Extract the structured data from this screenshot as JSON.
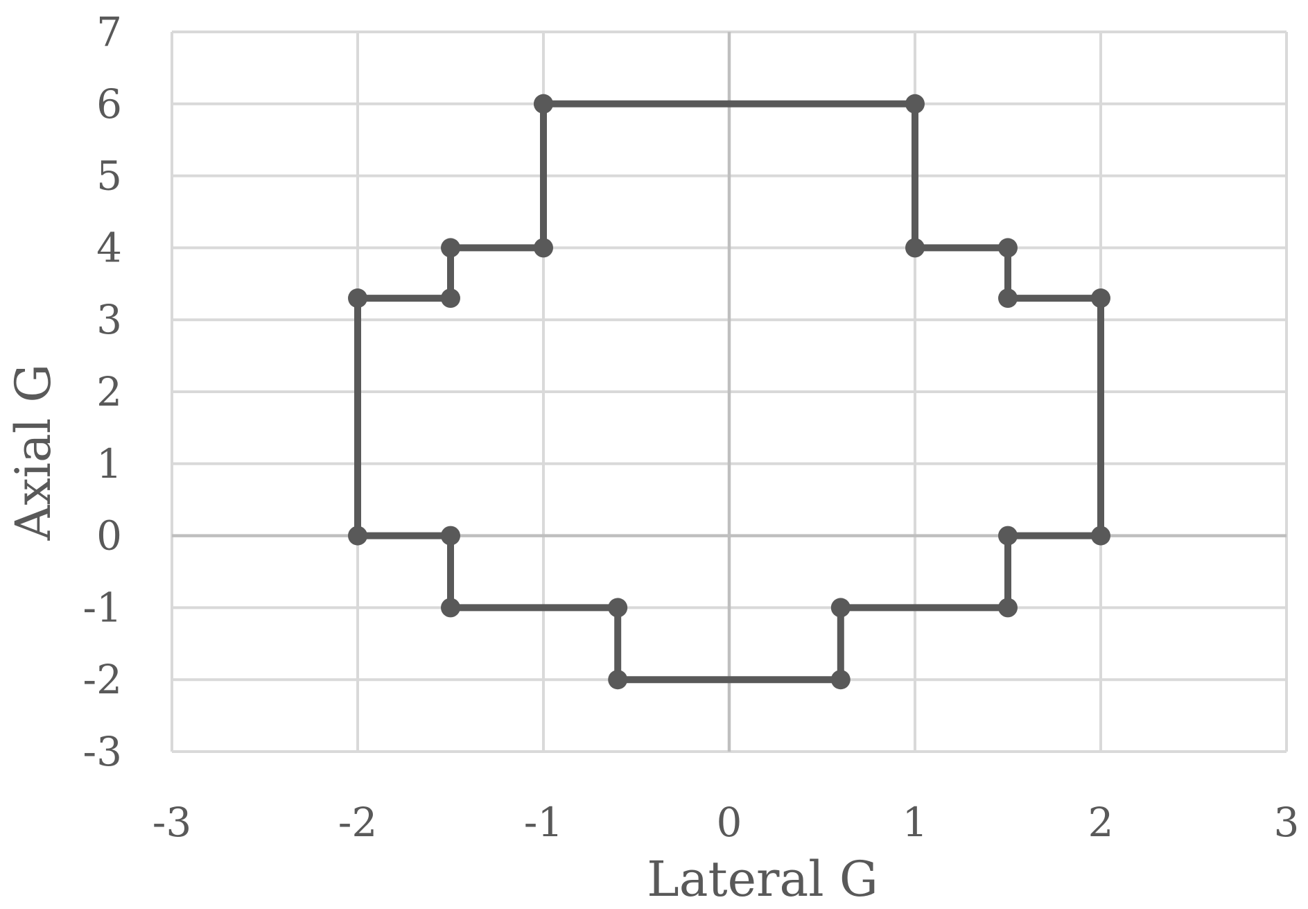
{
  "chart_data": {
    "type": "scatter",
    "xlabel": "Lateral G",
    "ylabel": "Axial G",
    "xlim": [
      -3,
      3
    ],
    "ylim": [
      -3,
      7
    ],
    "x_ticks": [
      -3,
      -2,
      -1,
      0,
      1,
      2,
      3
    ],
    "y_ticks": [
      -3,
      -2,
      -1,
      0,
      1,
      2,
      3,
      4,
      5,
      6,
      7
    ],
    "grid": true,
    "legend": "none",
    "series": [
      {
        "connected": true,
        "color": "#595959",
        "points": [
          {
            "x": -1,
            "y": 6
          },
          {
            "x": 1,
            "y": 6
          },
          {
            "x": 1,
            "y": 4
          },
          {
            "x": 1.5,
            "y": 4
          },
          {
            "x": 1.5,
            "y": 3.3
          },
          {
            "x": 2,
            "y": 3.3
          },
          {
            "x": 2,
            "y": 0
          },
          {
            "x": 1.5,
            "y": 0
          },
          {
            "x": 1.5,
            "y": -1
          },
          {
            "x": 0.6,
            "y": -1
          },
          {
            "x": 0.6,
            "y": -2
          },
          {
            "x": -0.6,
            "y": -2
          },
          {
            "x": -0.6,
            "y": -1
          },
          {
            "x": -1.5,
            "y": -1
          },
          {
            "x": -1.5,
            "y": 0
          },
          {
            "x": -2,
            "y": 0
          },
          {
            "x": -2,
            "y": 3.3
          },
          {
            "x": -1.5,
            "y": 3.3
          },
          {
            "x": -1.5,
            "y": 4
          },
          {
            "x": -1,
            "y": 4
          },
          {
            "x": -1,
            "y": 6
          }
        ]
      }
    ],
    "colors": {
      "grid": "#d9d9d9",
      "zero_axis": "#bfbfbf",
      "series": "#595959",
      "text": "#595959"
    }
  }
}
